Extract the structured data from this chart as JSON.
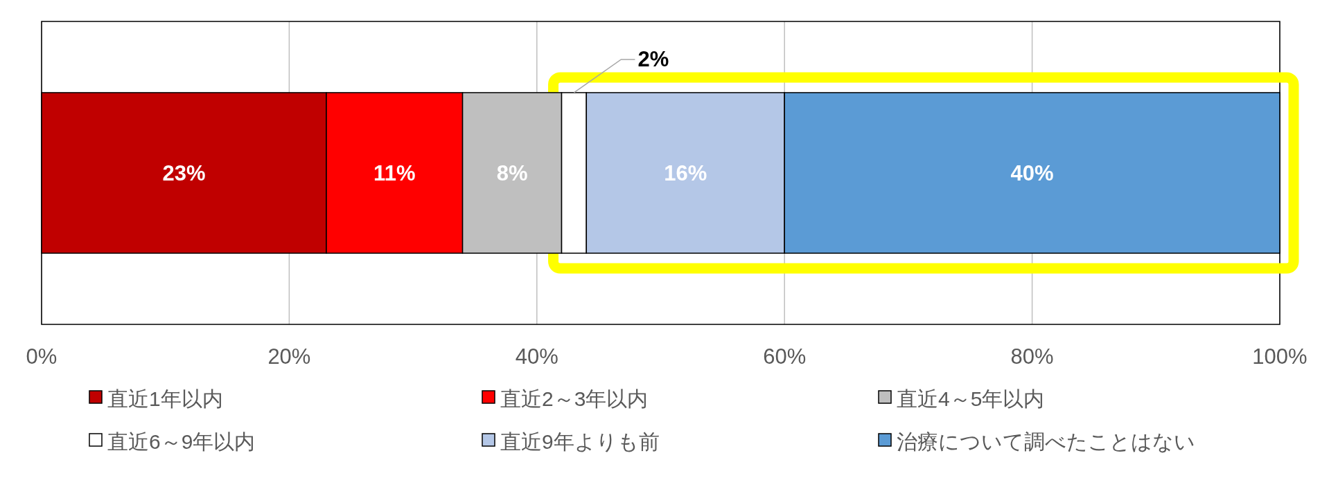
{
  "chart_data": {
    "type": "bar",
    "orientation": "horizontal",
    "stacked": true,
    "categories": [
      null
    ],
    "series": [
      {
        "name": "直近1年以内",
        "color": "#c00000",
        "values": [
          23
        ],
        "value_labels": [
          "23%"
        ]
      },
      {
        "name": "直近2～3年以内",
        "color": "#ff0000",
        "values": [
          11
        ],
        "value_labels": [
          "11%"
        ]
      },
      {
        "name": "直近4～5年以内",
        "color": "#bfbfbf",
        "values": [
          8
        ],
        "value_labels": [
          "8%"
        ]
      },
      {
        "name": "直近6～9年以内",
        "color": "#ffffff",
        "values": [
          2
        ],
        "value_labels": [
          "2%"
        ]
      },
      {
        "name": "直近9年よりも前",
        "color": "#b4c7e7",
        "values": [
          16
        ],
        "value_labels": [
          "16%"
        ]
      },
      {
        "name": "治療について調べたことはない",
        "color": "#5b9bd5",
        "values": [
          40
        ],
        "value_labels": [
          "40%"
        ]
      }
    ],
    "xlim": [
      0,
      100
    ],
    "xticks": [
      {
        "value": 0,
        "label": "0%"
      },
      {
        "value": 20,
        "label": "20%"
      },
      {
        "value": 40,
        "label": "40%"
      },
      {
        "value": 60,
        "label": "60%"
      },
      {
        "value": 80,
        "label": "80%"
      },
      {
        "value": 100,
        "label": "100%"
      }
    ],
    "grid": "x",
    "legend": "bottom"
  }
}
